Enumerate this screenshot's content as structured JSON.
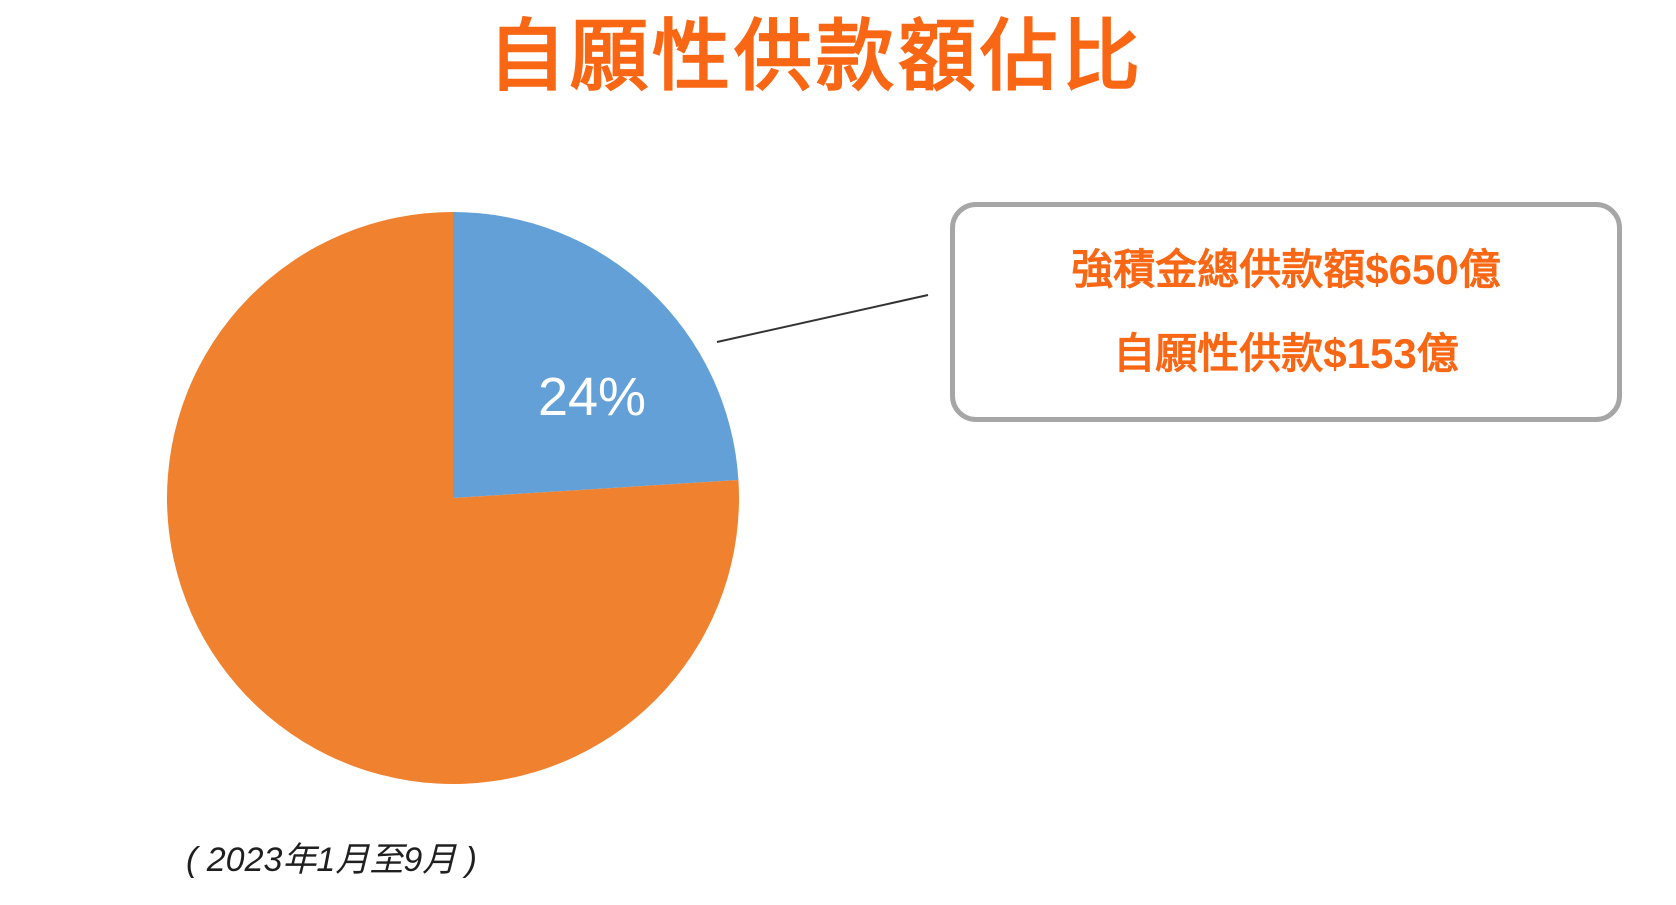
{
  "title": "自願性供款額佔比",
  "caption": "( 2023年1月至9月 )",
  "callout": {
    "line1": "強積金總供款額$650億",
    "line2": "自願性供款$153億"
  },
  "chart_data": {
    "type": "pie",
    "title": "自願性供款額佔比",
    "subtitle_period": "( 2023年1月至9月 )",
    "legend_position": "none",
    "annotations": [
      "強積金總供款額$650億",
      "自願性供款$153億"
    ],
    "slices": [
      {
        "label": "自願性供款",
        "value_pct": 24,
        "amount": "$153億",
        "data_label": "24%",
        "color": "#63A0D8"
      },
      {
        "label": "",
        "value_pct": 76,
        "amount": "",
        "data_label": "",
        "color": "#F0812E"
      }
    ],
    "total": {
      "label": "強積金總供款額",
      "amount": "$650億"
    }
  },
  "colors": {
    "title_text": "#F96714",
    "callout_text": "#F96714",
    "callout_border": "#A6A6A6",
    "pie_blue": "#63A0D8",
    "pie_orange": "#F0812E",
    "leader_line": "#333333",
    "caption_text": "#1F1F1F"
  }
}
